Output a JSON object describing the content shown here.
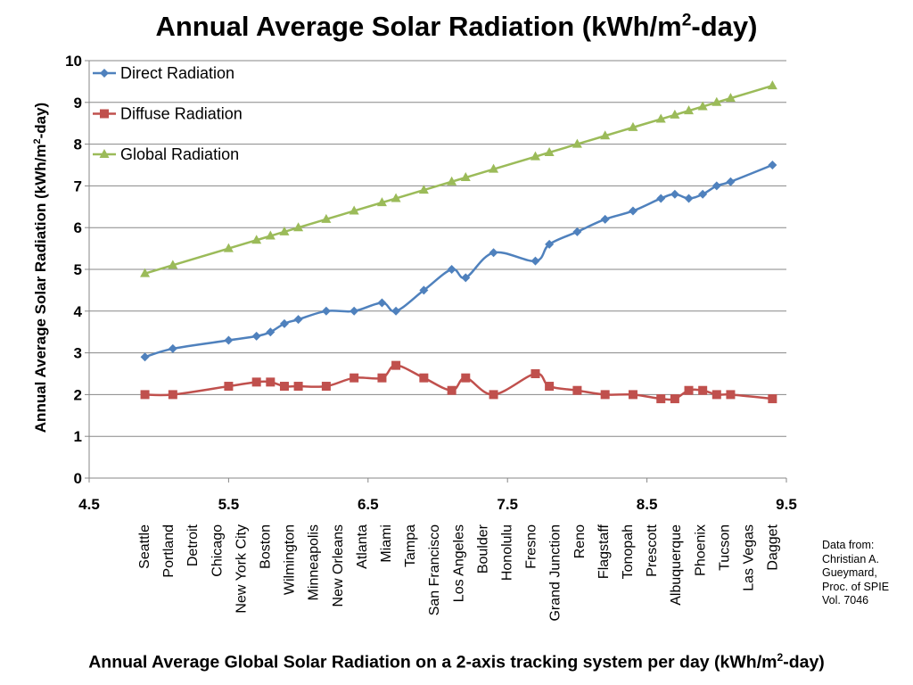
{
  "chart_data": {
    "type": "line",
    "title": {
      "pre": "Annual Average Solar Radiation (kWh/m",
      "sup": "2",
      "post": "-day)"
    },
    "ylabel": {
      "pre": "Annual Average Solar Radiation (kWh/m",
      "sup": "2",
      "post": "-day)"
    },
    "xlabel": {
      "pre": "Annual Average Global Solar Radiation on a 2-axis tracking system per day (kWh/m",
      "sup": "2",
      "post": "-day)"
    },
    "xlim": [
      4.5,
      9.5
    ],
    "ylim": [
      0,
      10
    ],
    "xticks": [
      "4.5",
      "5.5",
      "6.5",
      "7.5",
      "8.5",
      "9.5"
    ],
    "yticks": [
      "0",
      "1",
      "2",
      "3",
      "4",
      "5",
      "6",
      "7",
      "8",
      "9",
      "10"
    ],
    "grid": true,
    "legend_position": "top-left",
    "x": [
      4.9,
      5.1,
      5.5,
      5.7,
      5.8,
      5.9,
      6.0,
      6.2,
      6.4,
      6.6,
      6.7,
      6.9,
      7.1,
      7.2,
      7.4,
      7.7,
      7.8,
      8.0,
      8.2,
      8.4,
      8.6,
      8.7,
      8.8,
      8.9,
      9.0,
      9.1,
      9.4
    ],
    "categories": [
      "Seattle",
      "Portland",
      "Detroit",
      "Chicago",
      "New York City",
      "Boston",
      "Wilmington",
      "Minneapolis",
      "New Orleans",
      "Atlanta",
      "Miami",
      "Tampa",
      "San Francisco",
      "Los Angeles",
      "Boulder",
      "Honolulu",
      "Fresno",
      "Grand Junction",
      "Reno",
      "Flagstaff",
      "Tonopah",
      "Prescott",
      "Albuquerque",
      "Phoenix",
      "Tucson",
      "Las Vegas",
      "Dagget"
    ],
    "series": [
      {
        "name": "Direct Radiation",
        "color": "#4F81BD",
        "marker": "diamond",
        "x": [
          4.9,
          5.1,
          5.5,
          5.7,
          5.8,
          5.9,
          6.0,
          6.2,
          6.4,
          6.6,
          6.7,
          6.9,
          7.1,
          7.2,
          7.4,
          7.7,
          7.8,
          8.0,
          8.2,
          8.4,
          8.6,
          8.7,
          8.8,
          8.9,
          9.0,
          9.1,
          9.4
        ],
        "values": [
          2.9,
          3.1,
          3.3,
          3.4,
          3.5,
          3.7,
          3.8,
          4.0,
          4.0,
          4.2,
          4.0,
          4.5,
          5.0,
          4.8,
          5.4,
          5.2,
          5.6,
          5.9,
          6.2,
          6.4,
          6.7,
          6.8,
          6.7,
          6.8,
          7.0,
          7.1,
          7.5
        ]
      },
      {
        "name": "Diffuse Radiation",
        "color": "#C0504D",
        "marker": "square",
        "x": [
          4.9,
          5.1,
          5.5,
          5.7,
          5.8,
          5.9,
          6.0,
          6.2,
          6.4,
          6.6,
          6.7,
          6.9,
          7.1,
          7.2,
          7.4,
          7.7,
          7.8,
          8.0,
          8.2,
          8.4,
          8.6,
          8.7,
          8.8,
          8.9,
          9.0,
          9.1,
          9.4
        ],
        "values": [
          2.0,
          2.0,
          2.2,
          2.3,
          2.3,
          2.2,
          2.2,
          2.2,
          2.4,
          2.4,
          2.7,
          2.4,
          2.1,
          2.4,
          2.0,
          2.5,
          2.2,
          2.1,
          2.0,
          2.0,
          1.9,
          1.9,
          2.1,
          2.1,
          2.0,
          2.0,
          1.9
        ]
      },
      {
        "name": "Global Radiation",
        "color": "#9BBB59",
        "marker": "triangle",
        "x": [
          4.9,
          5.1,
          5.5,
          5.7,
          5.8,
          5.9,
          6.0,
          6.2,
          6.4,
          6.6,
          6.7,
          6.9,
          7.1,
          7.2,
          7.4,
          7.7,
          7.8,
          8.0,
          8.2,
          8.4,
          8.6,
          8.7,
          8.8,
          8.9,
          9.0,
          9.1,
          9.4
        ],
        "values": [
          4.9,
          5.1,
          5.5,
          5.7,
          5.8,
          5.9,
          6.0,
          6.2,
          6.4,
          6.6,
          6.7,
          6.9,
          7.1,
          7.2,
          7.4,
          7.7,
          7.8,
          8.0,
          8.2,
          8.4,
          8.6,
          8.7,
          8.8,
          8.9,
          9.0,
          9.1,
          9.4
        ]
      }
    ]
  },
  "source_note": "Data from:\nChristian A.\nGueymard,\nProc. of SPIE\nVol. 7046",
  "colors": {
    "grid": "#878787",
    "axis": "#878787"
  }
}
